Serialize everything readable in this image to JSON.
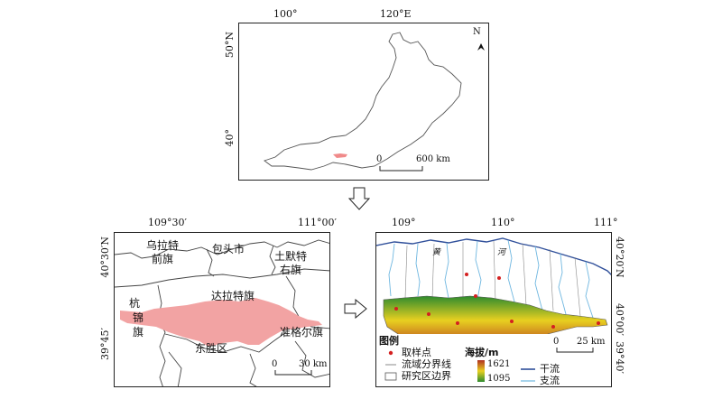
{
  "top_map": {
    "lon_labels": [
      "100°",
      "120°E"
    ],
    "lat_labels": [
      "50°N",
      "40°"
    ],
    "north_label": "N",
    "scale": {
      "zero": "0",
      "label": "600 km"
    },
    "colors": {
      "study_area": "#f08a8a",
      "boundary": "#555555"
    }
  },
  "left_map": {
    "lon_labels": [
      "109°30′",
      "111°00′"
    ],
    "lat_labels": [
      "40°30′N",
      "39°45′"
    ],
    "regions": {
      "wulate_1": "乌拉特",
      "wulate_2": "前旗",
      "baotou": "包头市",
      "tumote_1": "土默特",
      "tumote_2": "右旗",
      "hangjin_1": "杭",
      "hangjin_2": "锦",
      "hangjin_3": "旗",
      "dalate": "达拉特旗",
      "zhungeer": "准格尔旗",
      "dongsheng": "东胜区"
    },
    "scale": {
      "zero": "0",
      "label": "30 km"
    },
    "colors": {
      "study_area": "#f2a3a3",
      "boundary": "#444444"
    }
  },
  "right_map": {
    "lon_labels": [
      "109°",
      "110°",
      "111°"
    ],
    "lat_labels": [
      "40°20′N",
      "40°00′",
      "39°40′"
    ],
    "river_labels": [
      "黄",
      "河"
    ],
    "scale": {
      "zero": "0",
      "label": "25 km"
    },
    "legend": {
      "title": "图例",
      "sample_point": "取样点",
      "watershed_line": "流域分界线",
      "study_boundary": "研究区边界",
      "elevation_title": "海拔/m",
      "elev_high": "1621",
      "elev_low": "1095",
      "main_river": "干流",
      "tributary": "支流"
    },
    "colors": {
      "main_river": "#2f4f9a",
      "tributary": "#6fb7e0",
      "sample_point": "#d42020",
      "elev_high": "#b03020",
      "elev_mid": "#e8d020",
      "elev_low": "#2e8b2e"
    }
  }
}
